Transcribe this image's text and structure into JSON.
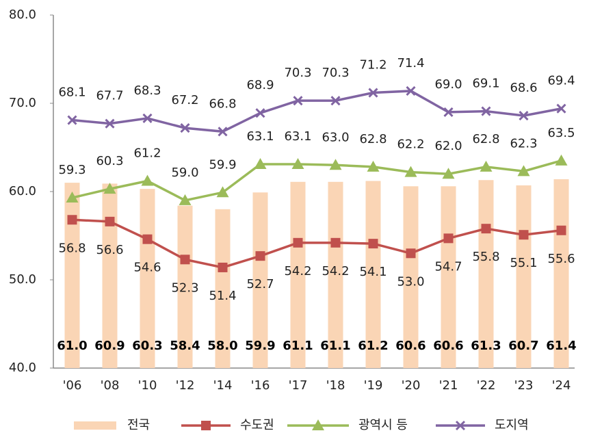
{
  "chart_data": {
    "type": "combo",
    "categories": [
      "'06",
      "'08",
      "'10",
      "'12",
      "'14",
      "'16",
      "'17",
      "'18",
      "'19",
      "'20",
      "'21",
      "'22",
      "'23",
      "'24"
    ],
    "ylim": [
      40,
      80
    ],
    "yticks": [
      {
        "value": 40,
        "label": "40.0"
      },
      {
        "value": 50,
        "label": "50.0"
      },
      {
        "value": 60,
        "label": "60.0"
      },
      {
        "value": 70,
        "label": "70.0"
      },
      {
        "value": 80,
        "label": "80.0"
      }
    ],
    "grid": false,
    "legend": "bottom",
    "series": [
      {
        "name": "전국",
        "type": "bar",
        "color": "#fad5b5",
        "label_position": "inside-bottom",
        "values": [
          61.0,
          60.9,
          60.3,
          58.4,
          58.0,
          59.9,
          61.1,
          61.1,
          61.2,
          60.6,
          60.6,
          61.3,
          60.7,
          61.4
        ],
        "value_labels": [
          "61.0",
          "60.9",
          "60.3",
          "58.4",
          "58.0",
          "59.9",
          "61.1",
          "61.1",
          "61.2",
          "60.6",
          "60.6",
          "61.3",
          "60.7",
          "61.4"
        ]
      },
      {
        "name": "수도권",
        "type": "line",
        "color": "#c0504d",
        "marker": "square",
        "label_position": "below",
        "values": [
          56.8,
          56.6,
          54.6,
          52.3,
          51.4,
          52.7,
          54.2,
          54.2,
          54.1,
          53.0,
          54.7,
          55.8,
          55.1,
          55.6
        ],
        "value_labels": [
          "56.8",
          "56.6",
          "54.6",
          "52.3",
          "51.4",
          "52.7",
          "54.2",
          "54.2",
          "54.1",
          "53.0",
          "54.7",
          "55.8",
          "55.1",
          "55.6"
        ]
      },
      {
        "name": "광역시 등",
        "type": "line",
        "color": "#9bbb59",
        "marker": "triangle",
        "label_position": "above",
        "values": [
          59.3,
          60.3,
          61.2,
          59.0,
          59.9,
          63.1,
          63.1,
          63.0,
          62.8,
          62.2,
          62.0,
          62.8,
          62.3,
          63.5
        ],
        "value_labels": [
          "59.3",
          "60.3",
          "61.2",
          "59.0",
          "59.9",
          "63.1",
          "63.1",
          "63.0",
          "62.8",
          "62.2",
          "62.0",
          "62.8",
          "62.3",
          "63.5"
        ]
      },
      {
        "name": "도지역",
        "type": "line",
        "color": "#8064a2",
        "marker": "x",
        "label_position": "above",
        "values": [
          68.1,
          67.7,
          68.3,
          67.2,
          66.8,
          68.9,
          70.3,
          70.3,
          71.2,
          71.4,
          69.0,
          69.1,
          68.6,
          69.4
        ],
        "value_labels": [
          "68.1",
          "67.7",
          "68.3",
          "67.2",
          "66.8",
          "68.9",
          "70.3",
          "70.3",
          "71.2",
          "71.4",
          "69.0",
          "69.1",
          "68.6",
          "69.4"
        ]
      }
    ]
  }
}
